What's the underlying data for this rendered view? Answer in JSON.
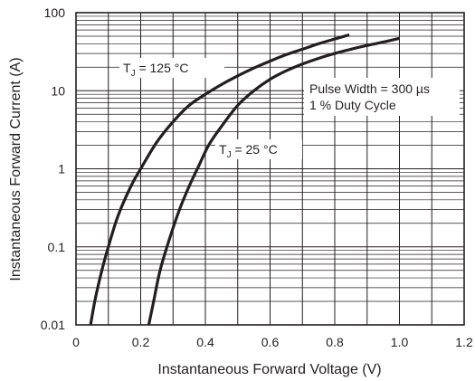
{
  "chart_data": {
    "type": "line",
    "title": "",
    "xlabel": "Instantaneous Forward Voltage (V)",
    "ylabel": "Instantaneous Forward Current (A)",
    "xscale": "linear",
    "yscale": "log",
    "xlim": [
      0,
      1.2
    ],
    "ylim": [
      0.01,
      100
    ],
    "grid": true,
    "x_ticks": [
      0,
      0.2,
      0.4,
      0.6,
      0.8,
      1.0,
      1.2
    ],
    "x_tick_labels": [
      "0",
      "0.2",
      "0.4",
      "0.6",
      "0.8",
      "1.0",
      "1.2"
    ],
    "y_ticks": [
      0.01,
      0.1,
      1,
      10,
      100
    ],
    "y_tick_labels": [
      "0.01",
      "0.1",
      "1",
      "10",
      "100"
    ],
    "series": [
      {
        "name": "T_J = 125 °C",
        "label_main": "T",
        "label_sub": "J",
        "label_rest": " = 125 °C",
        "color": "#231f20",
        "x": [
          0.045,
          0.06,
          0.08,
          0.1,
          0.13,
          0.17,
          0.2,
          0.25,
          0.3,
          0.35,
          0.4,
          0.45,
          0.5,
          0.55,
          0.6,
          0.65,
          0.7,
          0.75,
          0.8,
          0.845
        ],
        "y": [
          0.01,
          0.022,
          0.05,
          0.1,
          0.25,
          0.6,
          1.0,
          2.2,
          4.0,
          6.5,
          9.0,
          12.0,
          15.5,
          19.5,
          24.0,
          29.0,
          34.0,
          40.0,
          46.0,
          52.0
        ]
      },
      {
        "name": "T_J = 25 °C",
        "label_main": "T",
        "label_sub": "J",
        "label_rest": " = 25 °C",
        "color": "#231f20",
        "x": [
          0.225,
          0.24,
          0.26,
          0.29,
          0.32,
          0.35,
          0.38,
          0.41,
          0.45,
          0.5,
          0.55,
          0.6,
          0.65,
          0.7,
          0.75,
          0.8,
          0.85,
          0.9,
          0.95,
          1.0
        ],
        "y": [
          0.01,
          0.02,
          0.05,
          0.13,
          0.3,
          0.6,
          1.1,
          2.0,
          3.5,
          6.5,
          10.0,
          14.0,
          18.0,
          22.0,
          26.0,
          30.0,
          34.0,
          38.0,
          42.0,
          47.0
        ]
      }
    ],
    "annotations": [
      "Pulse Width = 300 µs",
      "1 % Duty Cycle"
    ]
  }
}
